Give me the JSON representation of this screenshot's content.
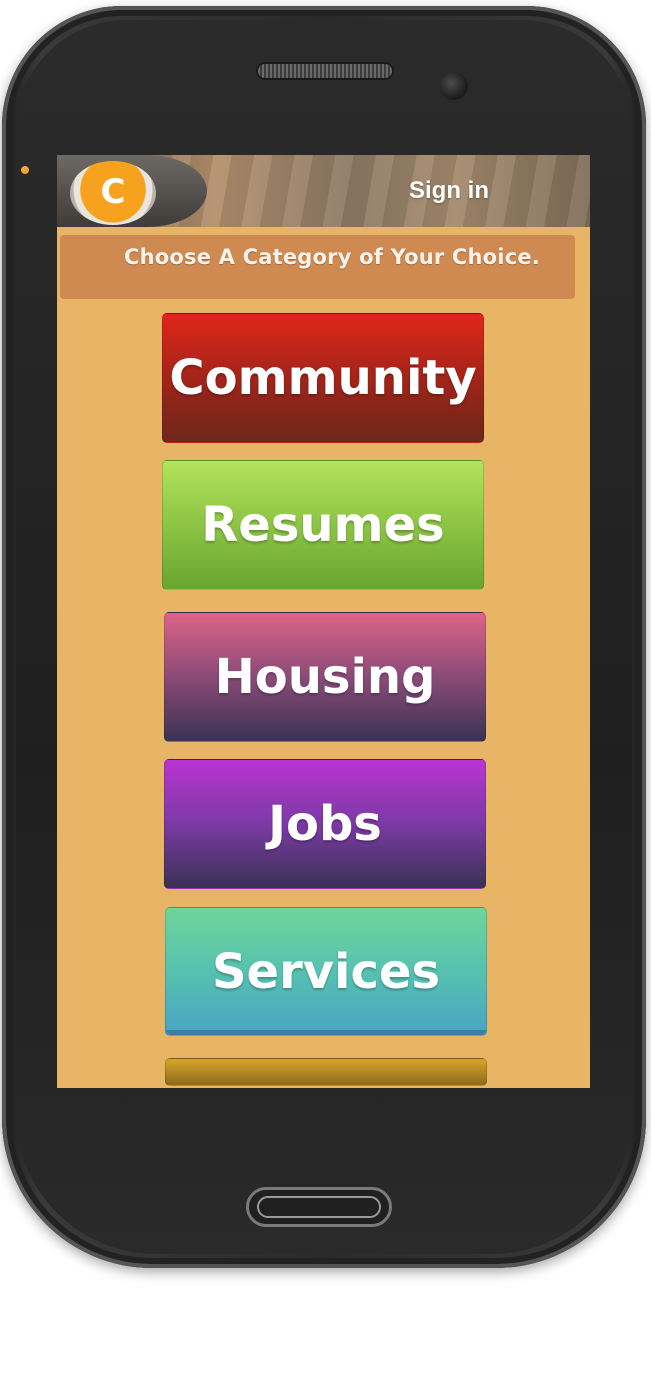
{
  "app": {
    "logo_letter": "C",
    "header": {
      "signin_label": "Sign in"
    },
    "banner": {
      "text": "Choose A Category of Your Choice."
    },
    "categories": [
      {
        "label": "Community"
      },
      {
        "label": "Resumes"
      },
      {
        "label": "Housing"
      },
      {
        "label": "Jobs"
      },
      {
        "label": "Services"
      },
      {
        "label": ""
      }
    ]
  },
  "colors": {
    "screen_background": "#e8b566",
    "banner": "#cf8a52",
    "logo": "#f6a21f",
    "community": "#e1261a",
    "resumes": "#8cc444",
    "housing": "#de6388",
    "jobs": "#b934d2",
    "services": "#56c2b0"
  },
  "icons": [
    "logo-icon"
  ]
}
